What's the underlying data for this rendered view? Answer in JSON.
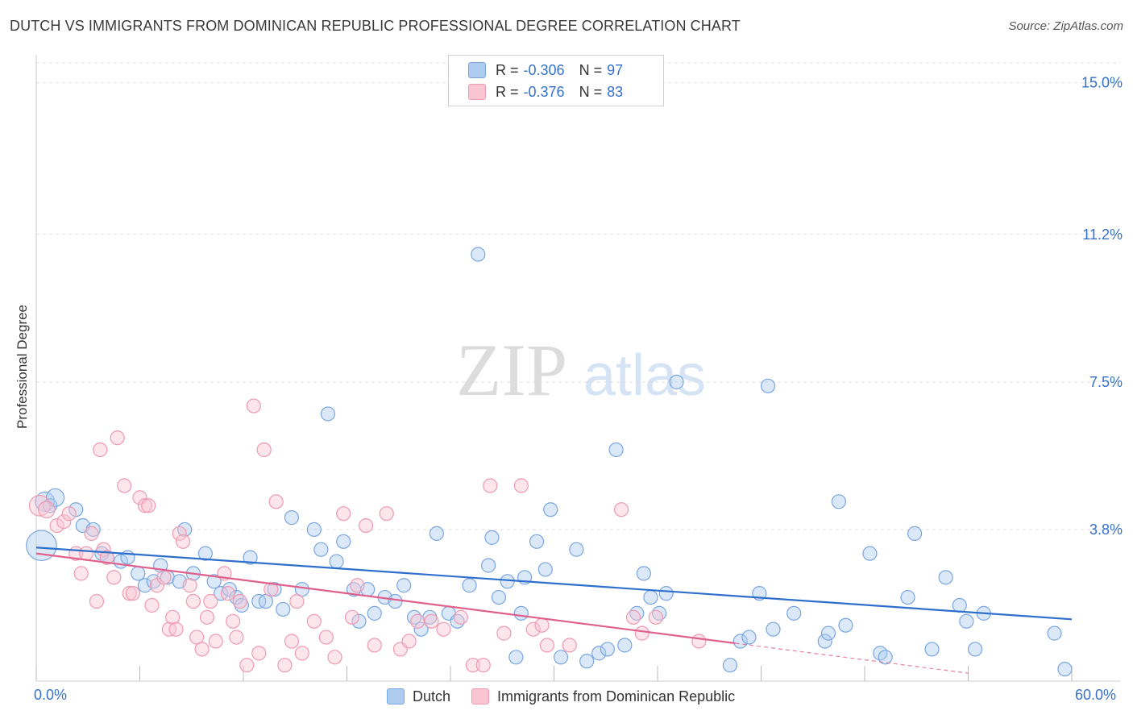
{
  "header": {
    "title": "DUTCH VS IMMIGRANTS FROM DOMINICAN REPUBLIC PROFESSIONAL DEGREE CORRELATION CHART",
    "source": "Source: ZipAtlas.com"
  },
  "watermark": {
    "zip": "ZIP",
    "atlas": "atlas"
  },
  "legend": {
    "rows": [
      {
        "r_label": "R =",
        "r_value": "-0.306",
        "n_label": "N =",
        "n_value": "97",
        "color": "#aecbf0",
        "border": "#7aa6e0"
      },
      {
        "r_label": "R =",
        "r_value": "-0.376",
        "n_label": "N =",
        "n_value": "83",
        "color": "#f9c5d3",
        "border": "#ee9ab2"
      }
    ]
  },
  "chart_data": {
    "type": "scatter",
    "title": "DUTCH VS IMMIGRANTS FROM DOMINICAN REPUBLIC PROFESSIONAL DEGREE CORRELATION CHART",
    "xlabel": "",
    "ylabel": "Professional Degree",
    "xlim": [
      0,
      60
    ],
    "ylim": [
      0,
      15.5
    ],
    "x_tick_labels": [
      "0.0%",
      "60.0%"
    ],
    "y_ticks": [
      {
        "value": 3.8,
        "label": "3.8%"
      },
      {
        "value": 7.5,
        "label": "7.5%"
      },
      {
        "value": 11.2,
        "label": "11.2%"
      },
      {
        "value": 15.0,
        "label": "15.0%"
      }
    ],
    "grid": "horizontal-dashed",
    "legend_position": "bottom-center",
    "series": [
      {
        "name": "Dutch",
        "color": "#7aa6e0",
        "fill": "#aecbf0",
        "trend": {
          "x": [
            0,
            60
          ],
          "y": [
            3.35,
            1.55
          ],
          "color": "#2f6fcc",
          "dashed_x": null
        },
        "points": [
          [
            0.3,
            3.4,
            2.2
          ],
          [
            0.5,
            4.5,
            1.4
          ],
          [
            0.8,
            4.4,
            1
          ],
          [
            1.1,
            4.6,
            1.3
          ],
          [
            2.3,
            4.3,
            1
          ],
          [
            2.7,
            3.9,
            1
          ],
          [
            3.3,
            3.8,
            1
          ],
          [
            3.8,
            3.2,
            1
          ],
          [
            4.1,
            3.1,
            1
          ],
          [
            4.9,
            3.0,
            1
          ],
          [
            5.3,
            3.1,
            1
          ],
          [
            5.9,
            2.7,
            1
          ],
          [
            6.3,
            2.4,
            1
          ],
          [
            6.8,
            2.5,
            1
          ],
          [
            7.2,
            2.9,
            1
          ],
          [
            7.6,
            2.6,
            1
          ],
          [
            8.3,
            2.5,
            1
          ],
          [
            8.6,
            3.8,
            1
          ],
          [
            9.1,
            2.7,
            1
          ],
          [
            9.8,
            3.2,
            1
          ],
          [
            10.3,
            2.5,
            1
          ],
          [
            10.7,
            2.2,
            1
          ],
          [
            11.2,
            2.3,
            1
          ],
          [
            11.6,
            2.1,
            1
          ],
          [
            11.9,
            1.9,
            1
          ],
          [
            12.4,
            3.1,
            1
          ],
          [
            12.9,
            2.0,
            1
          ],
          [
            13.3,
            2.0,
            1
          ],
          [
            13.8,
            2.3,
            1
          ],
          [
            14.3,
            1.8,
            1
          ],
          [
            14.8,
            4.1,
            1
          ],
          [
            15.4,
            2.3,
            1
          ],
          [
            16.1,
            3.8,
            1
          ],
          [
            16.5,
            3.3,
            1
          ],
          [
            16.9,
            6.7,
            1
          ],
          [
            17.4,
            3.0,
            1
          ],
          [
            17.8,
            3.5,
            1
          ],
          [
            18.4,
            2.3,
            1
          ],
          [
            18.7,
            1.5,
            1
          ],
          [
            19.2,
            2.3,
            1
          ],
          [
            19.6,
            1.7,
            1
          ],
          [
            20.2,
            2.1,
            1
          ],
          [
            20.8,
            2.0,
            1
          ],
          [
            21.3,
            2.4,
            1
          ],
          [
            21.9,
            1.6,
            1
          ],
          [
            22.3,
            1.3,
            1
          ],
          [
            22.8,
            1.6,
            1
          ],
          [
            23.2,
            3.7,
            1
          ],
          [
            23.9,
            1.7,
            1
          ],
          [
            24.4,
            1.5,
            1
          ],
          [
            25.1,
            2.4,
            1
          ],
          [
            25.6,
            10.7,
            1
          ],
          [
            26.2,
            2.9,
            1
          ],
          [
            26.4,
            3.6,
            1
          ],
          [
            26.8,
            2.1,
            1
          ],
          [
            27.3,
            2.5,
            1
          ],
          [
            27.8,
            0.6,
            1
          ],
          [
            28.1,
            1.7,
            1
          ],
          [
            28.3,
            2.6,
            1
          ],
          [
            29.0,
            3.5,
            1
          ],
          [
            29.5,
            2.8,
            1
          ],
          [
            29.8,
            4.3,
            1
          ],
          [
            30.4,
            0.6,
            1
          ],
          [
            31.3,
            3.3,
            1
          ],
          [
            31.9,
            0.5,
            1
          ],
          [
            32.6,
            0.7,
            1
          ],
          [
            33.1,
            0.8,
            1
          ],
          [
            33.6,
            5.8,
            1
          ],
          [
            34.1,
            0.9,
            1
          ],
          [
            34.8,
            1.7,
            1
          ],
          [
            35.2,
            2.7,
            1
          ],
          [
            35.6,
            2.1,
            1
          ],
          [
            36.1,
            1.7,
            1
          ],
          [
            36.5,
            2.2,
            1
          ],
          [
            37.1,
            7.5,
            1
          ],
          [
            40.2,
            0.4,
            1
          ],
          [
            40.8,
            1.0,
            1
          ],
          [
            41.3,
            1.1,
            1
          ],
          [
            41.9,
            2.2,
            1
          ],
          [
            42.4,
            7.4,
            1
          ],
          [
            42.7,
            1.3,
            1
          ],
          [
            43.9,
            1.7,
            1
          ],
          [
            45.7,
            1.0,
            1
          ],
          [
            45.9,
            1.2,
            1
          ],
          [
            46.5,
            4.5,
            1
          ],
          [
            46.9,
            1.4,
            1
          ],
          [
            48.3,
            3.2,
            1
          ],
          [
            48.9,
            0.7,
            1
          ],
          [
            49.2,
            0.6,
            1
          ],
          [
            50.5,
            2.1,
            1
          ],
          [
            50.9,
            3.7,
            1
          ],
          [
            51.9,
            0.8,
            1
          ],
          [
            52.7,
            2.6,
            1
          ],
          [
            53.5,
            1.9,
            1
          ],
          [
            53.9,
            1.5,
            1
          ],
          [
            54.4,
            0.8,
            1
          ],
          [
            54.9,
            1.7,
            1
          ],
          [
            59.0,
            1.2,
            1
          ],
          [
            59.6,
            0.3,
            1
          ]
        ]
      },
      {
        "name": "Immigrants from Dominican Republic",
        "color": "#ee9ab2",
        "fill": "#f9c5d3",
        "trend": {
          "x": [
            0,
            40.5
          ],
          "y": [
            3.2,
            0.95
          ],
          "color": "#e0608c",
          "dashed_x": [
            40.5,
            54
          ]
        },
        "points": [
          [
            0.2,
            4.4,
            1.5
          ],
          [
            0.6,
            4.3,
            1.2
          ],
          [
            1.2,
            3.9,
            1
          ],
          [
            1.6,
            4.0,
            1
          ],
          [
            1.9,
            4.2,
            1
          ],
          [
            2.3,
            3.2,
            1
          ],
          [
            2.6,
            2.7,
            1
          ],
          [
            2.9,
            3.2,
            1
          ],
          [
            3.2,
            3.7,
            1
          ],
          [
            3.5,
            2.0,
            1
          ],
          [
            3.7,
            5.8,
            1
          ],
          [
            3.9,
            3.3,
            1
          ],
          [
            4.1,
            3.1,
            1
          ],
          [
            4.5,
            2.6,
            1
          ],
          [
            4.7,
            6.1,
            1
          ],
          [
            5.1,
            4.9,
            1
          ],
          [
            5.4,
            2.2,
            1
          ],
          [
            5.6,
            2.2,
            1
          ],
          [
            6.0,
            4.6,
            1
          ],
          [
            6.3,
            4.4,
            1
          ],
          [
            6.5,
            4.4,
            1
          ],
          [
            6.7,
            1.9,
            1
          ],
          [
            7.0,
            2.4,
            1
          ],
          [
            7.4,
            2.6,
            1
          ],
          [
            7.7,
            1.3,
            1
          ],
          [
            7.9,
            1.6,
            1
          ],
          [
            8.1,
            1.3,
            1
          ],
          [
            8.3,
            3.7,
            1
          ],
          [
            8.5,
            3.5,
            1
          ],
          [
            8.9,
            2.4,
            1
          ],
          [
            9.1,
            2.0,
            1
          ],
          [
            9.3,
            1.1,
            1
          ],
          [
            9.6,
            0.8,
            1
          ],
          [
            9.9,
            1.6,
            1
          ],
          [
            10.1,
            2.0,
            1
          ],
          [
            10.4,
            1.0,
            1
          ],
          [
            10.9,
            2.7,
            1
          ],
          [
            11.1,
            2.2,
            1
          ],
          [
            11.4,
            1.5,
            1
          ],
          [
            11.6,
            1.1,
            1
          ],
          [
            11.8,
            2.0,
            1
          ],
          [
            12.2,
            0.4,
            1
          ],
          [
            12.6,
            6.9,
            1
          ],
          [
            12.9,
            0.7,
            1
          ],
          [
            13.2,
            5.8,
            1
          ],
          [
            13.6,
            2.3,
            1
          ],
          [
            13.9,
            4.5,
            1
          ],
          [
            14.4,
            0.4,
            1
          ],
          [
            14.8,
            1.0,
            1
          ],
          [
            15.1,
            2.0,
            1
          ],
          [
            15.4,
            0.7,
            1
          ],
          [
            16.1,
            1.5,
            1
          ],
          [
            16.8,
            1.1,
            1
          ],
          [
            17.3,
            0.6,
            1
          ],
          [
            17.8,
            4.2,
            1
          ],
          [
            18.3,
            1.6,
            1
          ],
          [
            18.6,
            2.4,
            1
          ],
          [
            19.1,
            3.9,
            1
          ],
          [
            19.6,
            0.9,
            1
          ],
          [
            20.3,
            4.2,
            1
          ],
          [
            21.1,
            0.8,
            1
          ],
          [
            21.6,
            1.0,
            1
          ],
          [
            22.1,
            1.5,
            1
          ],
          [
            22.9,
            1.5,
            1
          ],
          [
            23.6,
            1.3,
            1
          ],
          [
            24.6,
            1.6,
            1
          ],
          [
            25.3,
            0.4,
            1
          ],
          [
            25.9,
            0.4,
            1
          ],
          [
            26.3,
            4.9,
            1
          ],
          [
            27.1,
            1.2,
            1
          ],
          [
            28.1,
            4.9,
            1
          ],
          [
            28.8,
            1.3,
            1
          ],
          [
            29.3,
            1.4,
            1
          ],
          [
            29.6,
            0.9,
            1
          ],
          [
            30.9,
            0.9,
            1
          ],
          [
            33.9,
            4.3,
            1
          ],
          [
            34.6,
            1.6,
            1
          ],
          [
            35.1,
            1.2,
            1
          ],
          [
            35.9,
            1.6,
            1
          ],
          [
            38.4,
            1.0,
            1
          ]
        ]
      }
    ]
  }
}
